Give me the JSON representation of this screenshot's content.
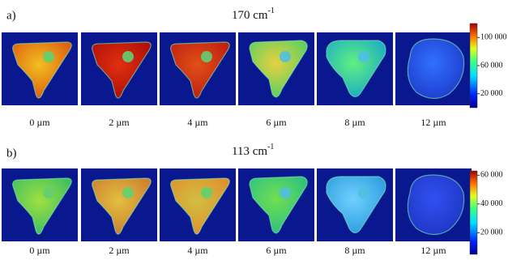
{
  "panels": [
    {
      "label": "a)",
      "title": "170 cm",
      "title_sup": "-1",
      "images": [
        "0 µm",
        "2 µm",
        "4 µm",
        "6 µm",
        "8 µm",
        "12 µm"
      ],
      "colorbar": {
        "lim": [
          0,
          120000
        ],
        "ticks": [
          {
            "value": 100000,
            "label": "100 000"
          },
          {
            "value": 60000,
            "label": "60 000"
          },
          {
            "value": 20000,
            "label": "20 000"
          }
        ]
      }
    },
    {
      "label": "b)",
      "title": "113 cm",
      "title_sup": "-1",
      "images": [
        "0 µm",
        "2 µm",
        "4 µm",
        "6 µm",
        "8 µm",
        "12 µm"
      ],
      "colorbar": {
        "lim": [
          5000,
          63000
        ],
        "ticks": [
          {
            "value": 60000,
            "label": "60 000"
          },
          {
            "value": 40000,
            "label": "40 000"
          },
          {
            "value": 20000,
            "label": "20 000"
          }
        ]
      }
    }
  ]
}
